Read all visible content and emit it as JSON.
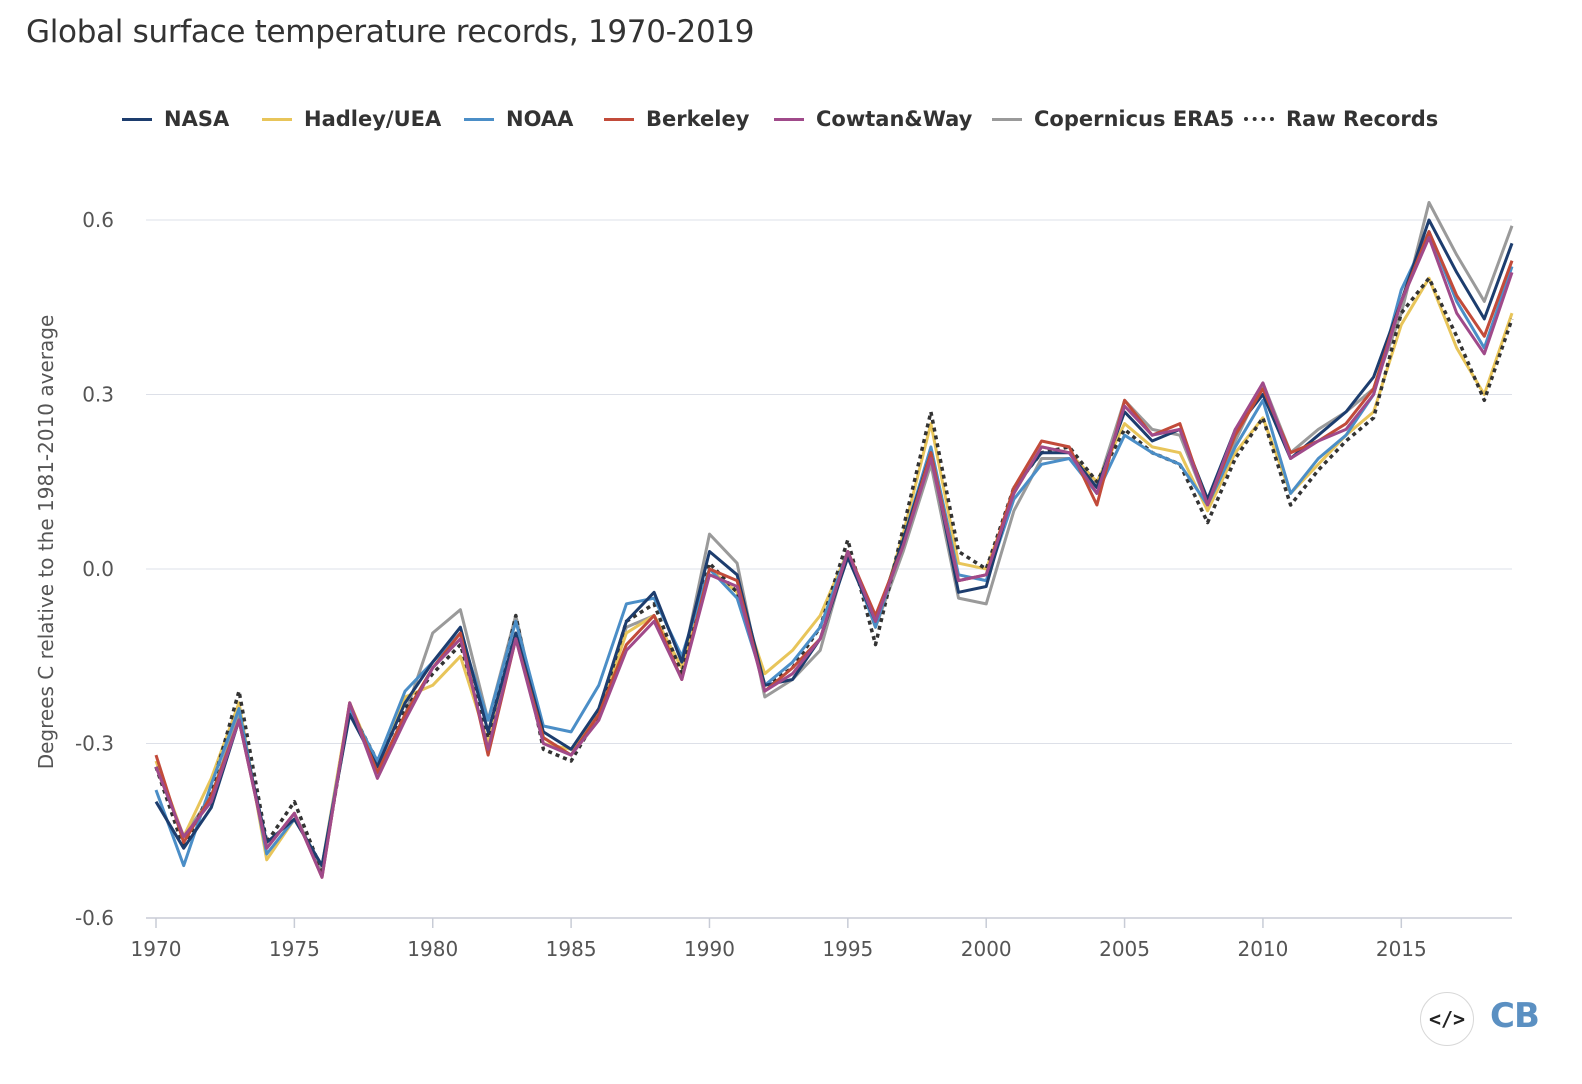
{
  "chart_title": "Global surface temperature records, 1970-2019",
  "embed_label": "</>",
  "logo_text": "CB",
  "chart_data": {
    "type": "line",
    "title": "Global surface temperature records, 1970-2019",
    "xlabel": "",
    "ylabel": "Degrees C relative to the 1981-2010 average",
    "xlim": [
      1970,
      2019
    ],
    "ylim": [
      -0.6,
      0.6
    ],
    "x_ticks": [
      1970,
      1975,
      1980,
      1985,
      1990,
      1995,
      2000,
      2005,
      2010,
      2015
    ],
    "y_ticks": [
      -0.6,
      -0.3,
      0.0,
      0.3,
      0.6
    ],
    "y_tick_labels": [
      "-0.6",
      "-0.3",
      "0.0",
      "0.3",
      "0.6"
    ],
    "grid": "horizontal",
    "legend_position": "top",
    "x": [
      1970,
      1971,
      1972,
      1973,
      1974,
      1975,
      1976,
      1977,
      1978,
      1979,
      1980,
      1981,
      1982,
      1983,
      1984,
      1985,
      1986,
      1987,
      1988,
      1989,
      1990,
      1991,
      1992,
      1993,
      1994,
      1995,
      1996,
      1997,
      1998,
      1999,
      2000,
      2001,
      2002,
      2003,
      2004,
      2005,
      2006,
      2007,
      2008,
      2009,
      2010,
      2011,
      2012,
      2013,
      2014,
      2015,
      2016,
      2017,
      2018,
      2019
    ],
    "series": [
      {
        "name": "Copernicus ERA5",
        "color": "#9a9a9a",
        "dash": "solid",
        "values": [
          -0.34,
          -0.46,
          -0.39,
          -0.25,
          -0.48,
          -0.42,
          -0.52,
          -0.24,
          -0.35,
          -0.25,
          -0.11,
          -0.07,
          -0.26,
          -0.08,
          -0.29,
          -0.32,
          -0.24,
          -0.1,
          -0.08,
          -0.17,
          0.06,
          0.01,
          -0.22,
          -0.19,
          -0.14,
          0.03,
          -0.1,
          0.03,
          0.18,
          -0.05,
          -0.06,
          0.1,
          0.19,
          0.19,
          0.14,
          0.29,
          0.24,
          0.23,
          0.11,
          0.22,
          0.32,
          0.2,
          0.24,
          0.27,
          0.31,
          0.44,
          0.63,
          0.54,
          0.46,
          0.59
        ]
      },
      {
        "name": "Hadley/UEA",
        "color": "#e8c55a",
        "dash": "solid",
        "values": [
          -0.33,
          -0.46,
          -0.36,
          -0.23,
          -0.5,
          -0.43,
          -0.51,
          -0.23,
          -0.34,
          -0.22,
          -0.2,
          -0.15,
          -0.3,
          -0.11,
          -0.3,
          -0.31,
          -0.25,
          -0.11,
          -0.08,
          -0.17,
          0.0,
          -0.04,
          -0.18,
          -0.14,
          -0.08,
          0.03,
          -0.1,
          0.06,
          0.25,
          0.01,
          0.0,
          0.13,
          0.21,
          0.2,
          0.15,
          0.25,
          0.21,
          0.2,
          0.1,
          0.2,
          0.26,
          0.13,
          0.18,
          0.23,
          0.27,
          0.42,
          0.5,
          0.38,
          0.3,
          0.44
        ]
      },
      {
        "name": "Raw Records",
        "color": "#333333",
        "dash": "dotted",
        "values": [
          -0.34,
          -0.48,
          -0.38,
          -0.21,
          -0.47,
          -0.4,
          -0.52,
          -0.24,
          -0.33,
          -0.24,
          -0.18,
          -0.13,
          -0.29,
          -0.08,
          -0.31,
          -0.33,
          -0.25,
          -0.09,
          -0.06,
          -0.18,
          0.01,
          -0.04,
          -0.2,
          -0.17,
          -0.1,
          0.05,
          -0.13,
          0.07,
          0.27,
          0.03,
          0.0,
          0.14,
          0.2,
          0.21,
          0.15,
          0.24,
          0.2,
          0.18,
          0.08,
          0.19,
          0.26,
          0.11,
          0.17,
          0.22,
          0.26,
          0.44,
          0.5,
          0.4,
          0.29,
          0.43
        ]
      },
      {
        "name": "NOAA",
        "color": "#4b8ec7",
        "dash": "solid",
        "values": [
          -0.38,
          -0.51,
          -0.37,
          -0.24,
          -0.49,
          -0.43,
          -0.51,
          -0.24,
          -0.33,
          -0.21,
          -0.16,
          -0.11,
          -0.26,
          -0.09,
          -0.27,
          -0.28,
          -0.2,
          -0.06,
          -0.05,
          -0.15,
          0.0,
          -0.05,
          -0.2,
          -0.16,
          -0.1,
          0.03,
          -0.1,
          0.05,
          0.21,
          -0.01,
          -0.02,
          0.12,
          0.18,
          0.19,
          0.13,
          0.23,
          0.2,
          0.18,
          0.11,
          0.21,
          0.29,
          0.13,
          0.19,
          0.23,
          0.3,
          0.48,
          0.58,
          0.46,
          0.38,
          0.52
        ]
      },
      {
        "name": "NASA",
        "color": "#1d3d6e",
        "dash": "solid",
        "values": [
          -0.4,
          -0.48,
          -0.41,
          -0.26,
          -0.47,
          -0.43,
          -0.51,
          -0.25,
          -0.34,
          -0.23,
          -0.16,
          -0.1,
          -0.28,
          -0.11,
          -0.28,
          -0.31,
          -0.24,
          -0.09,
          -0.04,
          -0.16,
          0.03,
          -0.01,
          -0.2,
          -0.19,
          -0.12,
          0.02,
          -0.09,
          0.05,
          0.2,
          -0.04,
          -0.03,
          0.14,
          0.2,
          0.2,
          0.14,
          0.27,
          0.22,
          0.24,
          0.12,
          0.24,
          0.3,
          0.19,
          0.23,
          0.27,
          0.33,
          0.46,
          0.6,
          0.51,
          0.43,
          0.56
        ]
      },
      {
        "name": "Berkeley",
        "color": "#c24b3a",
        "dash": "solid",
        "values": [
          -0.32,
          -0.47,
          -0.39,
          -0.26,
          -0.48,
          -0.42,
          -0.53,
          -0.23,
          -0.35,
          -0.25,
          -0.17,
          -0.11,
          -0.32,
          -0.12,
          -0.29,
          -0.32,
          -0.25,
          -0.13,
          -0.08,
          -0.19,
          0.0,
          -0.02,
          -0.21,
          -0.17,
          -0.12,
          0.03,
          -0.08,
          0.04,
          0.2,
          -0.02,
          -0.01,
          0.14,
          0.22,
          0.21,
          0.11,
          0.29,
          0.23,
          0.25,
          0.11,
          0.23,
          0.31,
          0.2,
          0.22,
          0.25,
          0.31,
          0.46,
          0.58,
          0.47,
          0.4,
          0.53
        ]
      },
      {
        "name": "Cowtan&Way",
        "color": "#a04a8a",
        "dash": "solid",
        "values": [
          -0.34,
          -0.46,
          -0.4,
          -0.26,
          -0.48,
          -0.42,
          -0.53,
          -0.23,
          -0.36,
          -0.26,
          -0.17,
          -0.12,
          -0.31,
          -0.12,
          -0.3,
          -0.32,
          -0.26,
          -0.14,
          -0.09,
          -0.19,
          -0.01,
          -0.03,
          -0.21,
          -0.18,
          -0.12,
          0.03,
          -0.09,
          0.04,
          0.19,
          -0.02,
          -0.01,
          0.13,
          0.21,
          0.2,
          0.13,
          0.28,
          0.23,
          0.24,
          0.11,
          0.24,
          0.32,
          0.19,
          0.22,
          0.24,
          0.3,
          0.46,
          0.57,
          0.44,
          0.37,
          0.51
        ]
      }
    ]
  },
  "legend": [
    {
      "label": "NASA",
      "color": "#1d3d6e",
      "dash": "solid"
    },
    {
      "label": "Hadley/UEA",
      "color": "#e8c55a",
      "dash": "solid"
    },
    {
      "label": "NOAA",
      "color": "#4b8ec7",
      "dash": "solid"
    },
    {
      "label": "Berkeley",
      "color": "#c24b3a",
      "dash": "solid"
    },
    {
      "label": "Cowtan&Way",
      "color": "#a04a8a",
      "dash": "solid"
    },
    {
      "label": "Copernicus ERA5",
      "color": "#9a9a9a",
      "dash": "solid"
    },
    {
      "label": "Raw Records",
      "color": "#333333",
      "dash": "dotted"
    }
  ]
}
